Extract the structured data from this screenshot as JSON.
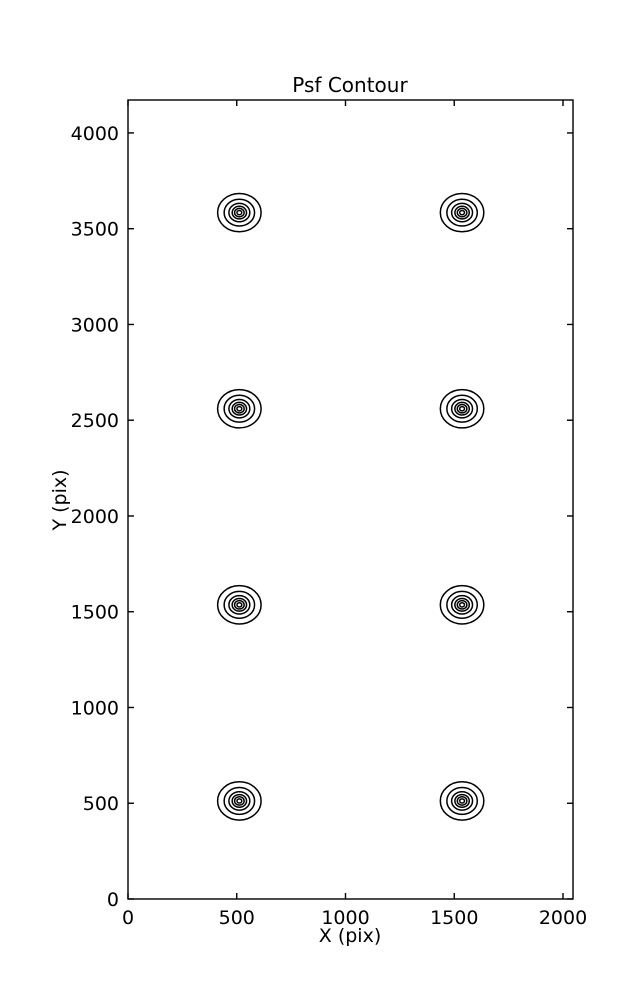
{
  "chart_data": {
    "type": "contour",
    "title": "Psf Contour",
    "xlabel": "X (pix)",
    "ylabel": "Y (pix)",
    "xlim": [
      0,
      2046
    ],
    "ylim": [
      0,
      4172
    ],
    "xticks": [
      0,
      500,
      1000,
      1500,
      2000
    ],
    "yticks": [
      0,
      500,
      1000,
      1500,
      2000,
      2500,
      3000,
      3500,
      4000
    ],
    "grid": false,
    "legend": false,
    "line_color": "#000000",
    "background_color": "#ffffff",
    "psf_centers": [
      {
        "x": 512,
        "y": 512
      },
      {
        "x": 1536,
        "y": 512
      },
      {
        "x": 512,
        "y": 1536
      },
      {
        "x": 1536,
        "y": 1536
      },
      {
        "x": 512,
        "y": 2560
      },
      {
        "x": 1536,
        "y": 2560
      },
      {
        "x": 512,
        "y": 3584
      },
      {
        "x": 1536,
        "y": 3584
      }
    ],
    "contour_ring_radii_pix": [
      100,
      70,
      48,
      33,
      22,
      11
    ]
  }
}
